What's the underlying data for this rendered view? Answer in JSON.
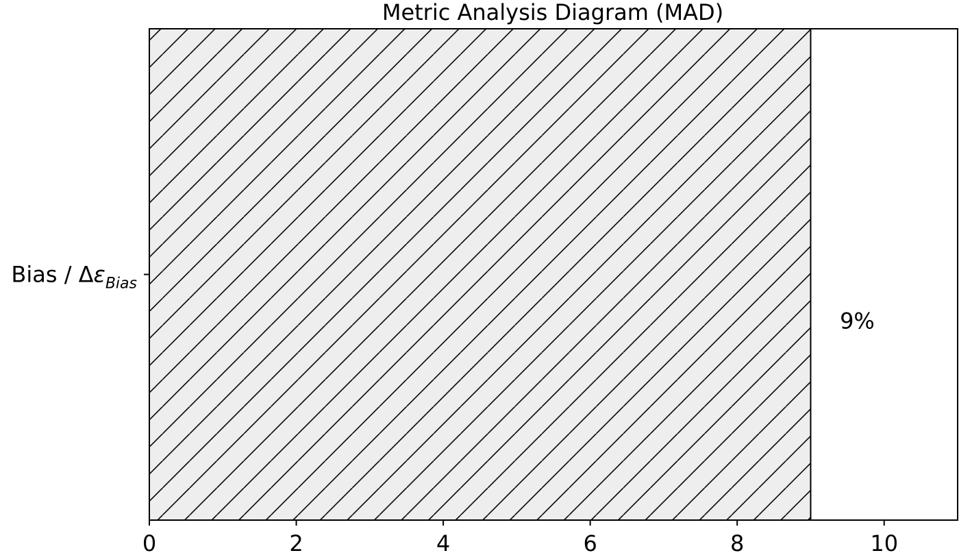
{
  "chart_data": {
    "type": "bar",
    "orientation": "horizontal",
    "title": "Metric Analysis Diagram (MAD)",
    "categories": [
      {
        "main": "Bias / Δ",
        "greek": "ε",
        "sub": "Bias"
      }
    ],
    "values": [
      9
    ],
    "data_labels": [
      "9%"
    ],
    "xlim": [
      0,
      11
    ],
    "xticks": [
      0,
      2,
      4,
      6,
      8,
      10
    ],
    "xlabel": "",
    "ylabel": "",
    "grid": false,
    "bar_fill": "#eeeeee",
    "bar_hatch": "diagonal",
    "edge_color": "#000000"
  }
}
